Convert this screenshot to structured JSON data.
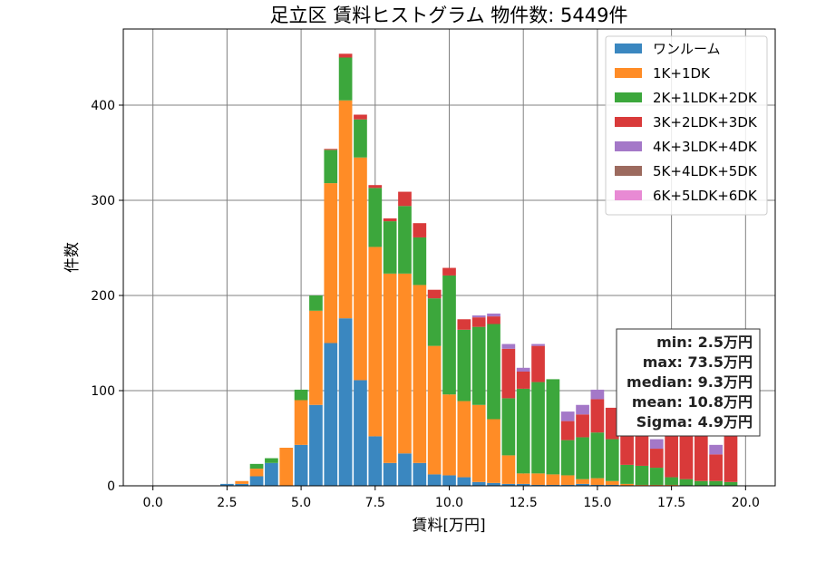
{
  "chart_data": {
    "type": "bar",
    "stacked": true,
    "title": "足立区 賃料ヒストグラム 物件数: 5449件",
    "xlabel": "賃料[万円]",
    "ylabel": "件数",
    "xlim": [
      -1.0,
      21.0
    ],
    "ylim": [
      0,
      480
    ],
    "xticks": [
      "0.0",
      "2.5",
      "5.0",
      "7.5",
      "10.0",
      "12.5",
      "15.0",
      "17.5",
      "20.0"
    ],
    "xtick_values": [
      0,
      2.5,
      5,
      7.5,
      10,
      12.5,
      15,
      17.5,
      20
    ],
    "yticks": [
      "0",
      "100",
      "200",
      "300",
      "400"
    ],
    "ytick_values": [
      0,
      100,
      200,
      300,
      400
    ],
    "grid": true,
    "legend_position": "top-right",
    "bin_width": 0.5,
    "x": [
      0.0,
      0.5,
      1.0,
      1.5,
      2.0,
      2.5,
      3.0,
      3.5,
      4.0,
      4.5,
      5.0,
      5.5,
      6.0,
      6.5,
      7.0,
      7.5,
      8.0,
      8.5,
      9.0,
      9.5,
      10.0,
      10.5,
      11.0,
      11.5,
      12.0,
      12.5,
      13.0,
      13.5,
      14.0,
      14.5,
      15.0,
      15.5,
      16.0,
      16.5,
      17.0,
      17.5,
      18.0,
      18.5,
      19.0,
      19.5
    ],
    "series": [
      {
        "name": "ワンルーム",
        "color": "#3a87c0",
        "values": [
          0,
          0,
          0,
          0,
          0,
          2,
          2,
          10,
          24,
          0,
          43,
          85,
          150,
          176,
          111,
          52,
          24,
          34,
          24,
          12,
          11,
          9,
          4,
          3,
          2,
          2,
          1,
          1,
          1,
          2,
          1,
          1,
          0,
          0,
          0,
          0,
          0,
          0,
          0,
          0
        ]
      },
      {
        "name": "1K+1DK",
        "color": "#ff8c26",
        "values": [
          0,
          0,
          0,
          0,
          0,
          0,
          3,
          8,
          0,
          40,
          47,
          99,
          168,
          229,
          234,
          199,
          199,
          189,
          187,
          135,
          85,
          80,
          81,
          67,
          30,
          11,
          12,
          11,
          10,
          5,
          7,
          4,
          2,
          1,
          1,
          1,
          0,
          0,
          0,
          0
        ]
      },
      {
        "name": "2K+1LDK+2DK",
        "color": "#3ca73c",
        "values": [
          0,
          0,
          0,
          0,
          0,
          0,
          0,
          5,
          5,
          0,
          11,
          16,
          35,
          45,
          40,
          62,
          55,
          71,
          50,
          50,
          125,
          75,
          82,
          100,
          60,
          89,
          96,
          100,
          37,
          44,
          48,
          44,
          20,
          20,
          18,
          8,
          7,
          5,
          5,
          4
        ]
      },
      {
        "name": "3K+2LDK+3DK",
        "color": "#d93a3a",
        "values": [
          0,
          0,
          0,
          0,
          0,
          0,
          0,
          0,
          0,
          0,
          0,
          0,
          1,
          4,
          5,
          3,
          3,
          15,
          15,
          9,
          8,
          11,
          10,
          8,
          52,
          18,
          38,
          0,
          20,
          24,
          35,
          33,
          45,
          50,
          20,
          85,
          70,
          70,
          28,
          55
        ]
      },
      {
        "name": "4K+3LDK+4DK",
        "color": "#a478c8",
        "values": [
          0,
          0,
          0,
          0,
          0,
          0,
          0,
          0,
          0,
          0,
          0,
          0,
          0,
          0,
          0,
          0,
          0,
          0,
          0,
          0,
          0,
          0,
          2,
          3,
          5,
          4,
          2,
          0,
          10,
          10,
          10,
          0,
          0,
          0,
          10,
          0,
          0,
          0,
          10,
          0
        ]
      },
      {
        "name": "5K+4LDK+5DK",
        "color": "#9c6a5e",
        "values": [
          0,
          0,
          0,
          0,
          0,
          0,
          0,
          0,
          0,
          0,
          0,
          0,
          0,
          0,
          0,
          0,
          0,
          0,
          0,
          0,
          0,
          0,
          0,
          0,
          0,
          0,
          0,
          0,
          0,
          0,
          0,
          0,
          0,
          0,
          0,
          0,
          0,
          0,
          0,
          0
        ]
      },
      {
        "name": "6K+5LDK+6DK",
        "color": "#e88ad4",
        "values": [
          0,
          0,
          0,
          0,
          0,
          0,
          0,
          0,
          0,
          0,
          0,
          0,
          0,
          0,
          0,
          0,
          0,
          0,
          0,
          0,
          0,
          0,
          0,
          0,
          0,
          0,
          0,
          0,
          0,
          0,
          0,
          0,
          0,
          0,
          0,
          0,
          0,
          0,
          0,
          0
        ]
      }
    ],
    "stats": [
      "min: 2.5万円",
      "max: 73.5万円",
      "median: 9.3万円",
      "mean: 10.8万円",
      "Sigma: 4.9万円"
    ]
  }
}
